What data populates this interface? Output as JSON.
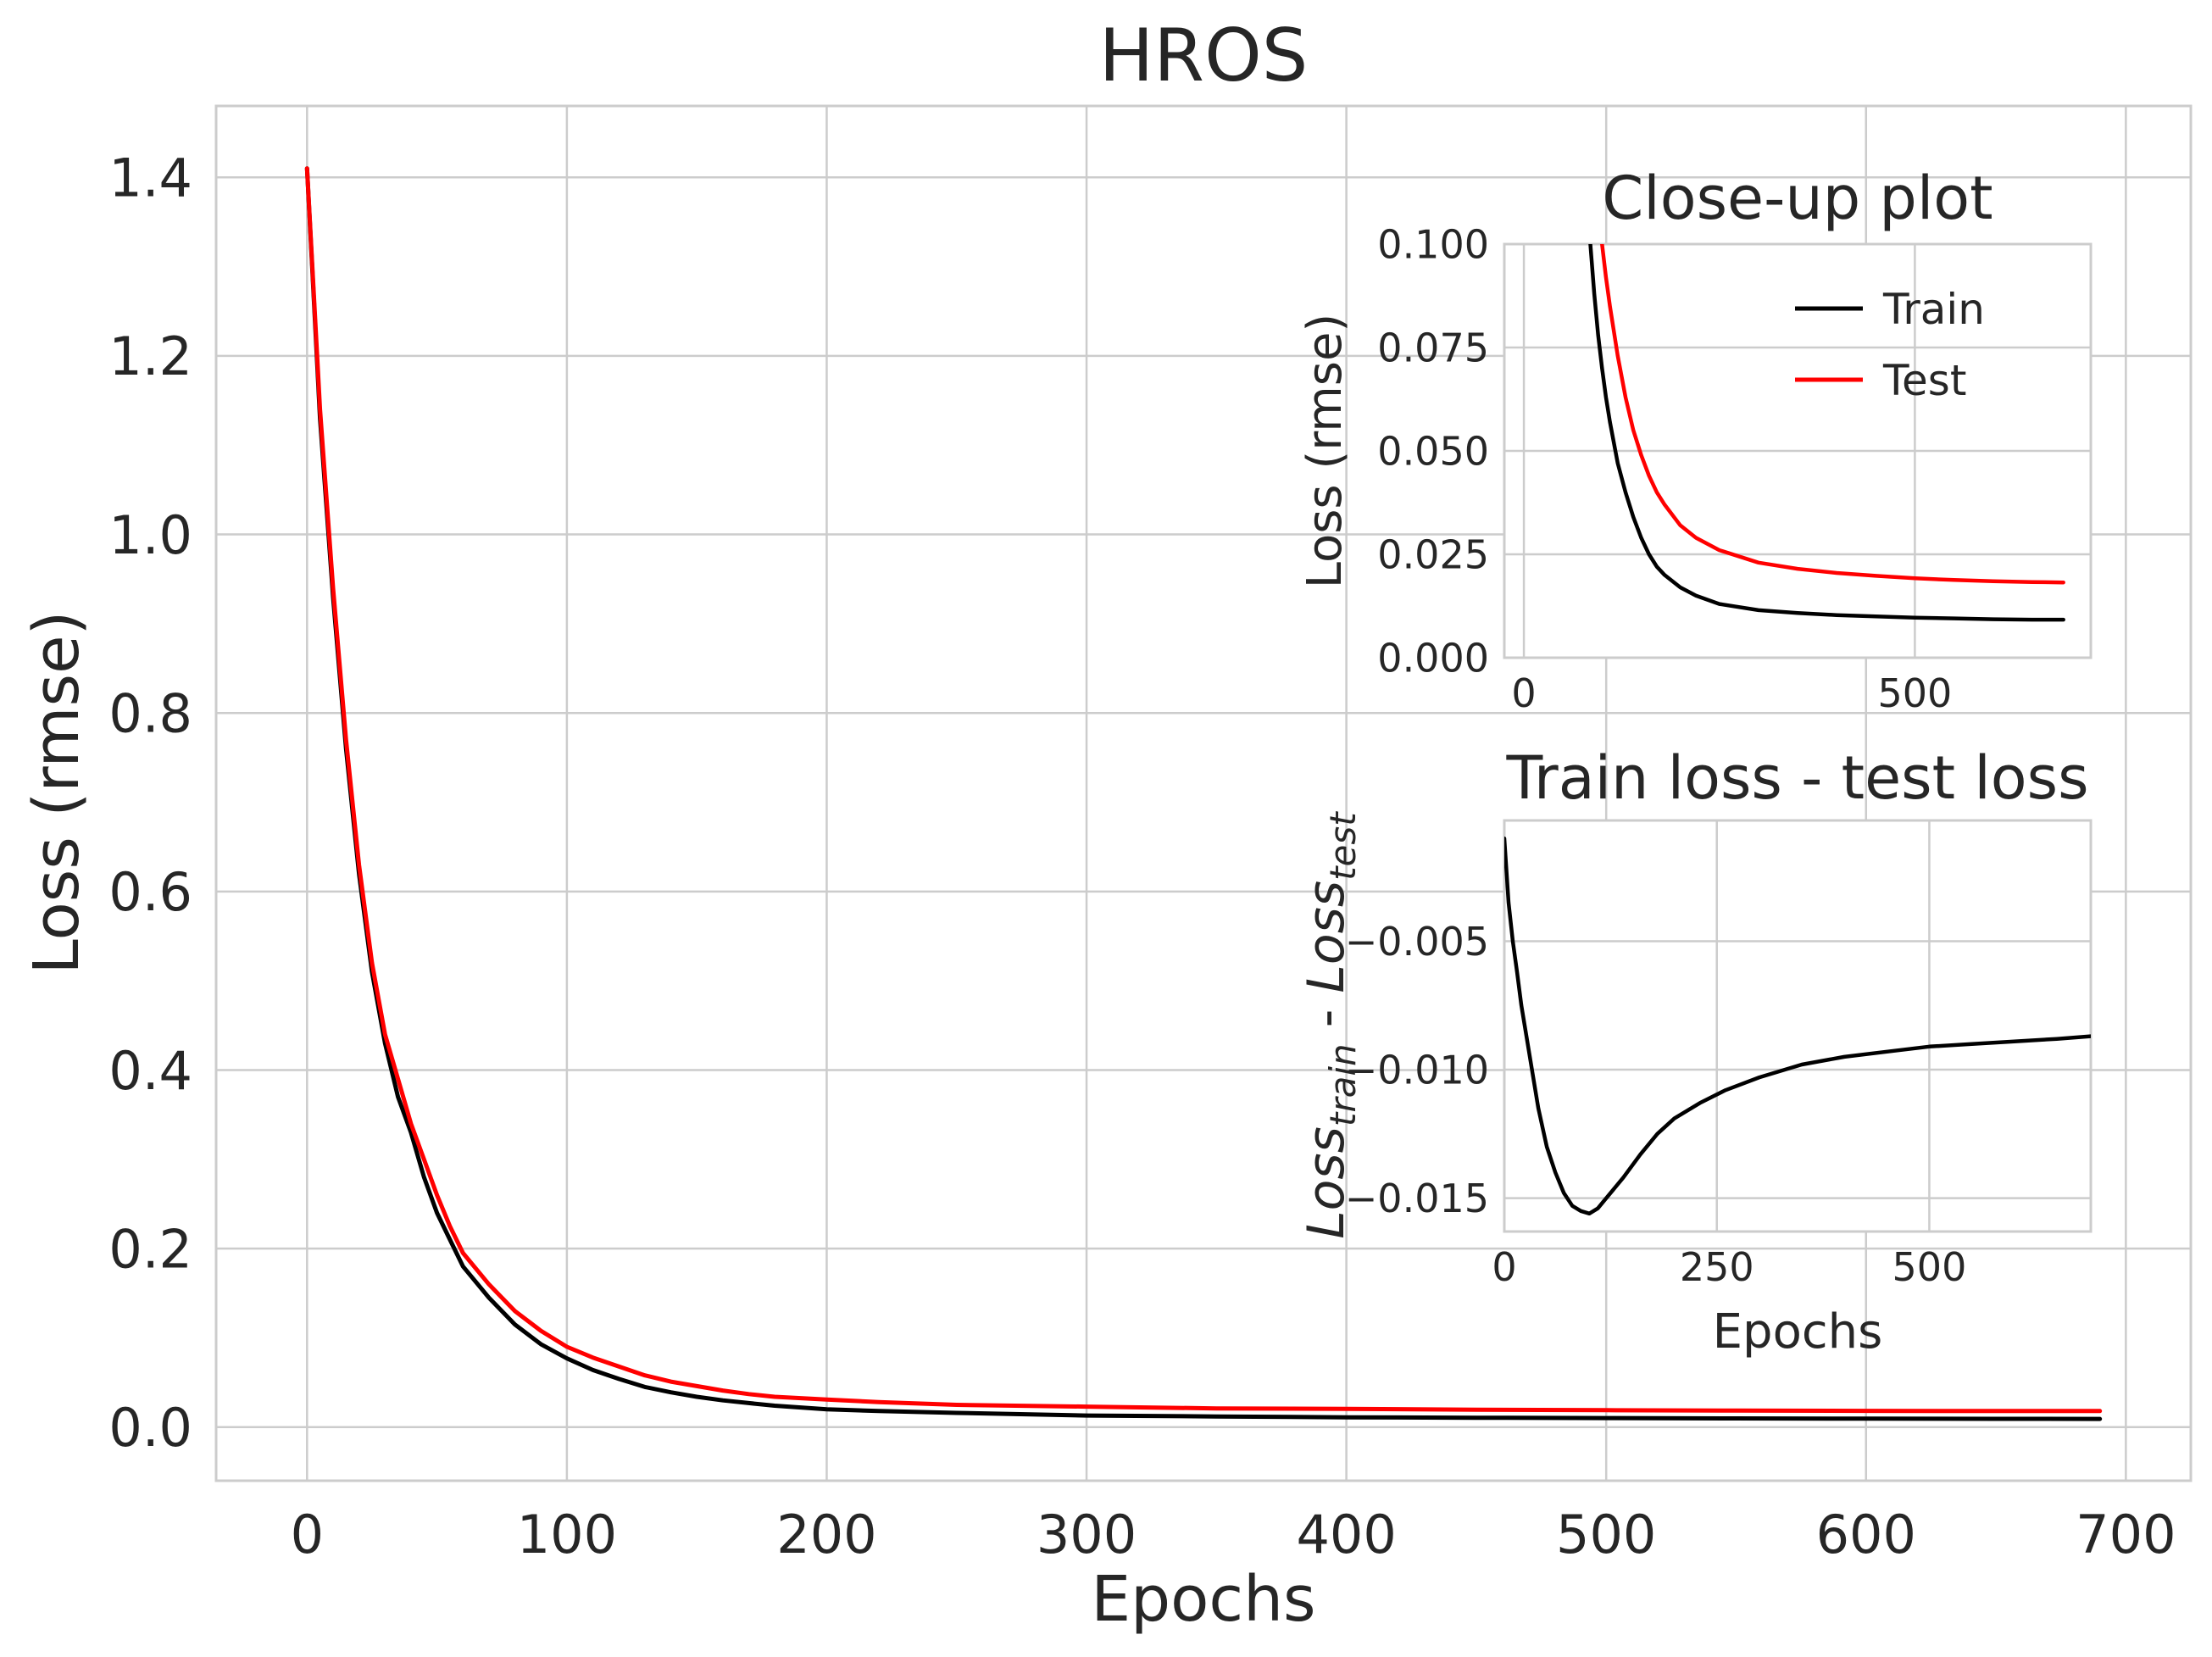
{
  "chart_data": [
    {
      "id": "main",
      "type": "line",
      "title": "HROS",
      "xlabel": "Epochs",
      "ylabel": "Loss (rmse)",
      "xlim": [
        -35,
        725
      ],
      "ylim": [
        -0.06,
        1.48
      ],
      "xticks": [
        0,
        100,
        200,
        300,
        400,
        500,
        600,
        700
      ],
      "yticks": [
        0.0,
        0.2,
        0.4,
        0.6,
        0.8,
        1.0,
        1.2,
        1.4
      ],
      "xtick_labels": [
        "0",
        "100",
        "200",
        "300",
        "400",
        "500",
        "600",
        "700"
      ],
      "ytick_labels": [
        "0.0",
        "0.2",
        "0.4",
        "0.6",
        "0.8",
        "1.0",
        "1.2",
        "1.4"
      ],
      "grid": true,
      "legend": false,
      "series": [
        {
          "name": "Train",
          "color": "#000000",
          "x": [
            0,
            5,
            10,
            15,
            20,
            25,
            30,
            35,
            40,
            45,
            50,
            55,
            60,
            70,
            80,
            90,
            100,
            110,
            120,
            130,
            140,
            150,
            160,
            170,
            180,
            200,
            220,
            250,
            300,
            350,
            400,
            450,
            500,
            550,
            600,
            650,
            690
          ],
          "y": [
            1.41,
            1.13,
            0.93,
            0.76,
            0.62,
            0.51,
            0.43,
            0.37,
            0.33,
            0.28,
            0.24,
            0.21,
            0.18,
            0.145,
            0.115,
            0.093,
            0.077,
            0.064,
            0.054,
            0.045,
            0.039,
            0.034,
            0.03,
            0.027,
            0.024,
            0.02,
            0.018,
            0.016,
            0.013,
            0.012,
            0.011,
            0.0105,
            0.0102,
            0.0098,
            0.0095,
            0.0093,
            0.0092
          ]
        },
        {
          "name": "Test",
          "color": "#ff0000",
          "x": [
            0,
            5,
            10,
            15,
            20,
            25,
            30,
            35,
            40,
            45,
            50,
            55,
            60,
            70,
            80,
            90,
            100,
            110,
            120,
            130,
            140,
            150,
            160,
            170,
            180,
            200,
            220,
            250,
            300,
            350,
            400,
            450,
            500,
            550,
            600,
            650,
            690
          ],
          "y": [
            1.41,
            1.14,
            0.94,
            0.77,
            0.63,
            0.52,
            0.44,
            0.39,
            0.34,
            0.3,
            0.26,
            0.225,
            0.195,
            0.16,
            0.13,
            0.108,
            0.09,
            0.078,
            0.068,
            0.058,
            0.051,
            0.046,
            0.041,
            0.037,
            0.034,
            0.031,
            0.028,
            0.025,
            0.023,
            0.021,
            0.0205,
            0.0195,
            0.019,
            0.0185,
            0.0182,
            0.018,
            0.018
          ]
        }
      ]
    },
    {
      "id": "inset-closeup",
      "type": "line",
      "title": "Close-up plot",
      "xlabel": "",
      "ylabel": "Loss (rmse)",
      "xlim": [
        -25,
        725
      ],
      "ylim": [
        0.0,
        0.1
      ],
      "xticks": [
        0,
        500
      ],
      "yticks": [
        0.0,
        0.025,
        0.05,
        0.075,
        0.1
      ],
      "xtick_labels": [
        "0",
        "500"
      ],
      "ytick_labels": [
        "0.000",
        "0.025",
        "0.050",
        "0.075",
        "0.100"
      ],
      "grid": true,
      "legend": "top-right",
      "legend_entries": [
        "Train",
        "Test"
      ],
      "series": [
        {
          "name": "Train",
          "color": "#000000",
          "x": [
            85,
            90,
            95,
            100,
            105,
            110,
            120,
            130,
            140,
            150,
            160,
            170,
            180,
            200,
            220,
            250,
            300,
            350,
            400,
            450,
            500,
            550,
            600,
            650,
            690
          ],
          "y": [
            0.1,
            0.088,
            0.078,
            0.07,
            0.063,
            0.057,
            0.047,
            0.04,
            0.034,
            0.029,
            0.025,
            0.022,
            0.02,
            0.017,
            0.015,
            0.013,
            0.0115,
            0.0108,
            0.0103,
            0.01,
            0.0097,
            0.0095,
            0.0093,
            0.0092,
            0.0092
          ]
        },
        {
          "name": "Test",
          "color": "#ff0000",
          "x": [
            100,
            105,
            110,
            120,
            130,
            140,
            150,
            160,
            170,
            180,
            200,
            220,
            250,
            300,
            350,
            400,
            450,
            500,
            550,
            600,
            650,
            690
          ],
          "y": [
            0.1,
            0.092,
            0.085,
            0.073,
            0.063,
            0.055,
            0.049,
            0.044,
            0.04,
            0.037,
            0.032,
            0.029,
            0.026,
            0.023,
            0.0215,
            0.0205,
            0.0198,
            0.0192,
            0.0188,
            0.0185,
            0.0183,
            0.0182
          ]
        }
      ]
    },
    {
      "id": "inset-difference",
      "type": "line",
      "title": "Train loss - test loss",
      "xlabel": "Epochs",
      "ylabel_parts": [
        "Loss",
        "train",
        " - ",
        "Loss",
        "test"
      ],
      "xlim": [
        0,
        690
      ],
      "ylim": [
        -0.0163,
        -0.0003
      ],
      "xticks": [
        0,
        250,
        500
      ],
      "yticks": [
        -0.005,
        -0.01,
        -0.015
      ],
      "xtick_labels": [
        "0",
        "250",
        "500"
      ],
      "ytick_labels": [
        "−0.005",
        "−0.010",
        "−0.015"
      ],
      "grid": true,
      "legend": false,
      "series": [
        {
          "name": "",
          "color": "#000000",
          "x": [
            0,
            5,
            10,
            15,
            20,
            30,
            40,
            50,
            60,
            70,
            80,
            90,
            100,
            110,
            120,
            140,
            160,
            180,
            200,
            230,
            260,
            300,
            350,
            400,
            450,
            500,
            550,
            600,
            650,
            690
          ],
          "y": [
            -0.001,
            -0.0035,
            -0.005,
            -0.0062,
            -0.0075,
            -0.0095,
            -0.0115,
            -0.013,
            -0.014,
            -0.0148,
            -0.0153,
            -0.0155,
            -0.0156,
            -0.0154,
            -0.015,
            -0.0142,
            -0.0133,
            -0.0125,
            -0.0119,
            -0.0113,
            -0.0108,
            -0.0103,
            -0.0098,
            -0.0095,
            -0.0093,
            -0.0091,
            -0.009,
            -0.0089,
            -0.0088,
            -0.0087
          ]
        }
      ]
    }
  ]
}
